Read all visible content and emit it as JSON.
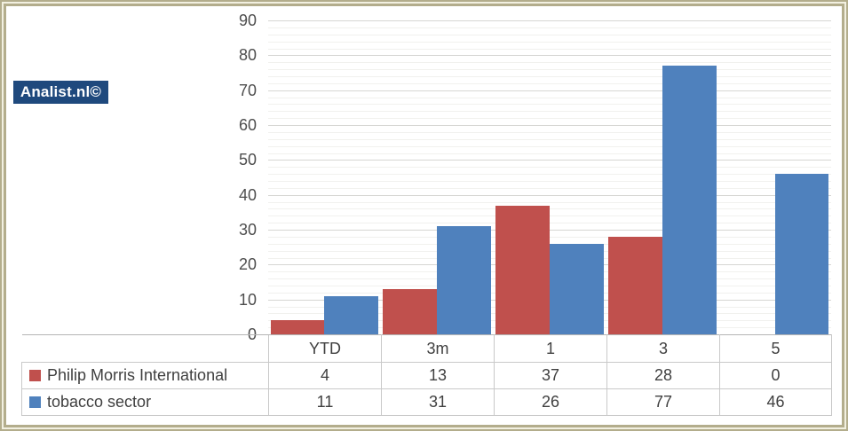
{
  "branding": {
    "logo_text": "Analist.nl©"
  },
  "colors": {
    "series_red": "#C0504D",
    "series_blue": "#4F81BD",
    "logo_bg": "#1F497D",
    "logo_text": "#FFFFFF",
    "major_grid": "#D6D6D3",
    "minor_grid": "#F1F1EE",
    "axis_line": "#B5B5B5",
    "table_border": "#C9C9C9",
    "text": "#404040",
    "tick_text": "#4D4D4D",
    "frame": "#B3AD8C",
    "frame_gap": "#F2F0E1"
  },
  "chart_data": {
    "type": "bar",
    "title": "",
    "xlabel": "",
    "ylabel": "",
    "categories": [
      "YTD",
      "3m",
      "1",
      "3",
      "5"
    ],
    "series": [
      {
        "name": "Philip Morris International",
        "color": "#C0504D",
        "values": [
          4,
          13,
          37,
          28,
          0
        ]
      },
      {
        "name": "tobacco sector",
        "color": "#4F81BD",
        "values": [
          11,
          31,
          26,
          77,
          46
        ]
      }
    ],
    "ylim": [
      0,
      90
    ],
    "y_major_step": 10,
    "y_minor_step": 2,
    "y_tick_labels": [
      "0",
      "10",
      "20",
      "30",
      "40",
      "50",
      "60",
      "70",
      "80",
      "90"
    ],
    "grid": true,
    "legend_position": "data-table-left"
  }
}
